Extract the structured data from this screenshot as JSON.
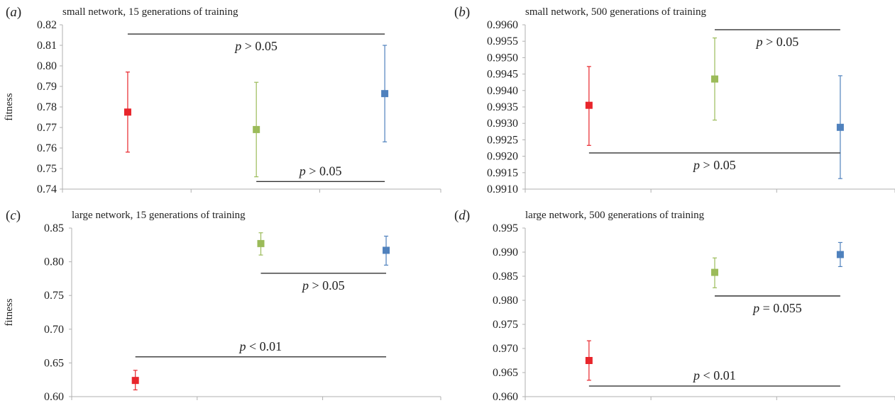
{
  "colors": {
    "red": "#e8252b",
    "green": "#9bbb59",
    "blue": "#4f81bd",
    "axis": "#b0b0b0",
    "line": "#333333"
  },
  "chart_data": [
    {
      "panel": "(a)",
      "type": "scatter",
      "title": "small network, 15 generations of training",
      "ylabel": "fitness",
      "ylim": [
        0.74,
        0.82
      ],
      "yticks": [
        "0.74",
        "0.75",
        "0.76",
        "0.77",
        "0.78",
        "0.79",
        "0.80",
        "0.81",
        "0.82"
      ],
      "x": [
        1,
        2,
        3
      ],
      "series": [
        {
          "color": "red",
          "x": 1,
          "y": 0.7775,
          "err_low": 0.758,
          "err_high": 0.797
        },
        {
          "color": "green",
          "x": 2,
          "y": 0.769,
          "err_low": 0.746,
          "err_high": 0.792
        },
        {
          "color": "blue",
          "x": 3,
          "y": 0.7865,
          "err_low": 0.763,
          "err_high": 0.81
        }
      ],
      "comparisons": [
        {
          "from": 1,
          "to": 3,
          "y": 0.8155,
          "label": "p > 0.05",
          "label_pos": "below"
        },
        {
          "from": 2,
          "to": 3,
          "y": 0.7437,
          "label": "p > 0.05",
          "label_pos": "above"
        }
      ]
    },
    {
      "panel": "(b)",
      "type": "scatter",
      "title": "small network, 500 generations of training",
      "ylabel": "",
      "ylim": [
        0.991,
        0.996
      ],
      "yticks": [
        "0.9910",
        "0.9915",
        "0.9920",
        "0.9925",
        "0.9930",
        "0.9935",
        "0.9940",
        "0.9945",
        "0.9950",
        "0.9955",
        "0.9960"
      ],
      "x": [
        1,
        2,
        3
      ],
      "series": [
        {
          "color": "red",
          "x": 1,
          "y": 0.99355,
          "err_low": 0.99233,
          "err_high": 0.99473
        },
        {
          "color": "green",
          "x": 2,
          "y": 0.99435,
          "err_low": 0.9931,
          "err_high": 0.9956
        },
        {
          "color": "blue",
          "x": 3,
          "y": 0.99288,
          "err_low": 0.99132,
          "err_high": 0.99445
        }
      ],
      "comparisons": [
        {
          "from": 2,
          "to": 3,
          "y": 0.99585,
          "label": "p > 0.05",
          "label_pos": "below"
        },
        {
          "from": 1,
          "to": 3,
          "y": 0.9921,
          "label": "p > 0.05",
          "label_pos": "below"
        }
      ]
    },
    {
      "panel": "(c)",
      "type": "scatter",
      "title": "large network, 15 generations of training",
      "ylabel": "fitness",
      "ylim": [
        0.6,
        0.85
      ],
      "yticks": [
        "0.60",
        "0.65",
        "0.70",
        "0.75",
        "0.80",
        "0.85"
      ],
      "x": [
        1,
        2,
        3
      ],
      "series": [
        {
          "color": "red",
          "x": 1,
          "y": 0.624,
          "err_low": 0.61,
          "err_high": 0.639
        },
        {
          "color": "green",
          "x": 2,
          "y": 0.827,
          "err_low": 0.81,
          "err_high": 0.843
        },
        {
          "color": "blue",
          "x": 3,
          "y": 0.817,
          "err_low": 0.795,
          "err_high": 0.838
        }
      ],
      "comparisons": [
        {
          "from": 2,
          "to": 3,
          "y": 0.783,
          "label": "p > 0.05",
          "label_pos": "below"
        },
        {
          "from": 1,
          "to": 3,
          "y": 0.659,
          "label": "p < 0.01",
          "label_pos": "above"
        }
      ]
    },
    {
      "panel": "(d)",
      "type": "scatter",
      "title": "large network, 500 generations of training",
      "ylabel": "",
      "ylim": [
        0.96,
        0.995
      ],
      "yticks": [
        "0.960",
        "0.965",
        "0.970",
        "0.975",
        "0.980",
        "0.985",
        "0.990",
        "0.995"
      ],
      "x": [
        1,
        2,
        3
      ],
      "series": [
        {
          "color": "red",
          "x": 1,
          "y": 0.9675,
          "err_low": 0.9634,
          "err_high": 0.9716
        },
        {
          "color": "green",
          "x": 2,
          "y": 0.9858,
          "err_low": 0.9826,
          "err_high": 0.9888
        },
        {
          "color": "blue",
          "x": 3,
          "y": 0.9895,
          "err_low": 0.987,
          "err_high": 0.992
        }
      ],
      "comparisons": [
        {
          "from": 2,
          "to": 3,
          "y": 0.9809,
          "label": "p = 0.055",
          "label_pos": "below"
        },
        {
          "from": 1,
          "to": 3,
          "y": 0.9622,
          "label": "p < 0.01",
          "label_pos": "above"
        }
      ]
    }
  ]
}
